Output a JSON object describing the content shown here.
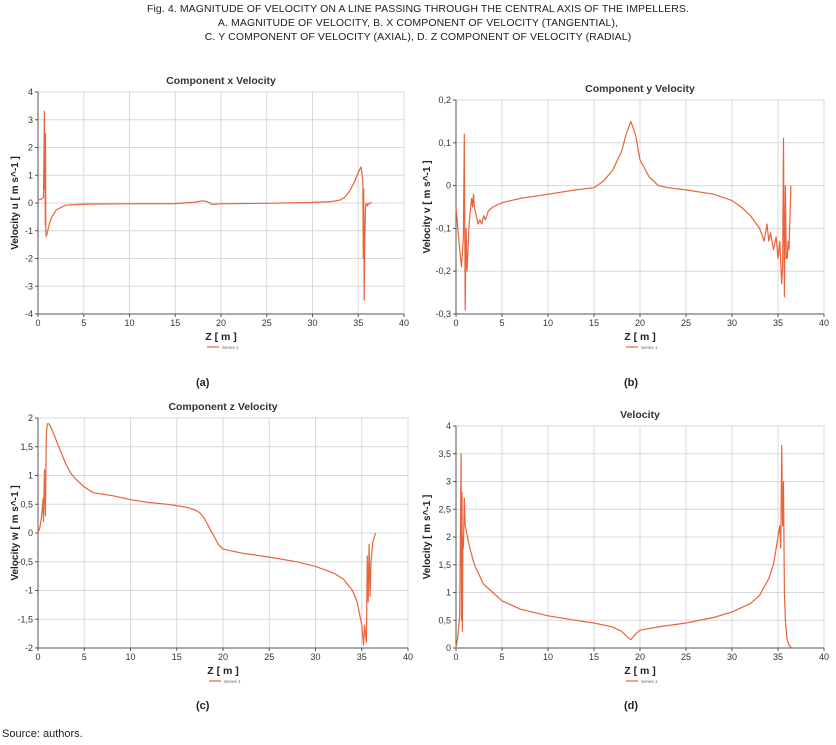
{
  "caption": {
    "line1": "Fig. 4. MAGNITUDE OF VELOCITY ON A LINE PASSING THROUGH THE CENTRAL AXIS OF THE IMPELLERS.",
    "line2": "A. MAGNITUDE OF VELOCITY, B. X COMPONENT OF VELOCITY (TANGENTIAL),",
    "line3": "C. Y COMPONENT OF VELOCITY (AXIAL), D. Z COMPONENT OF VELOCITY (RADIAL)"
  },
  "source": "Source: authors.",
  "colors": {
    "series": "#e8643c",
    "grid": "#d8d8d8",
    "axis": "#555555"
  },
  "chart_data": [
    {
      "id": "a",
      "type": "line",
      "panel_label": "(a)",
      "title": "Component x Velocity",
      "xlabel": "Z [ m ]",
      "ylabel": "Velocity u [ m s^-1 ]",
      "xlim": [
        0,
        40
      ],
      "ylim": [
        -4,
        4
      ],
      "xticks": [
        0,
        5,
        10,
        15,
        20,
        25,
        30,
        35,
        40
      ],
      "yticks": [
        -4,
        -3,
        -2,
        -1,
        0,
        1,
        2,
        3,
        4
      ],
      "ytick_labels": [
        "-4",
        "-3",
        "-2",
        "-1",
        "0",
        "1",
        "2",
        "3",
        "4"
      ],
      "legend": "Series 1",
      "series": [
        {
          "name": "Series 1",
          "x": [
            0,
            0.4,
            0.6,
            0.7,
            0.72,
            0.75,
            0.8,
            0.82,
            0.85,
            0.9,
            1.0,
            1.2,
            1.5,
            2.0,
            3.0,
            5.0,
            10,
            15,
            17,
            18,
            18.5,
            19,
            20,
            25,
            30,
            32,
            33,
            33.5,
            34,
            34.5,
            35,
            35.3,
            35.5,
            35.55,
            35.6,
            35.65,
            35.7,
            35.8,
            35.9,
            36.0,
            36.2,
            36.5
          ],
          "y": [
            0.1,
            0.15,
            0.2,
            3.3,
            0.5,
            2.4,
            -0.8,
            2.5,
            -1.0,
            -1.2,
            -1.1,
            -0.8,
            -0.5,
            -0.25,
            -0.08,
            -0.04,
            -0.03,
            -0.02,
            0.02,
            0.08,
            0.05,
            -0.05,
            -0.03,
            -0.01,
            0.02,
            0.05,
            0.1,
            0.2,
            0.4,
            0.7,
            1.1,
            1.3,
            0.8,
            -2.0,
            0.5,
            -3.5,
            -1.5,
            -0.1,
            0.0,
            -0.1,
            0.0,
            0.0
          ]
        }
      ]
    },
    {
      "id": "b",
      "type": "line",
      "panel_label": "(b)",
      "title": "Component y Velocity",
      "xlabel": "Z [ m ]",
      "ylabel": "Velocity v [ m s^-1 ]",
      "xlim": [
        0,
        40
      ],
      "ylim": [
        -0.3,
        0.2
      ],
      "xticks": [
        0,
        5,
        10,
        15,
        20,
        25,
        30,
        35,
        40
      ],
      "yticks": [
        -0.3,
        -0.2,
        -0.1,
        0,
        0.1,
        0.2
      ],
      "ytick_labels": [
        "-0,3",
        "-0,2",
        "-0,1",
        "0",
        "0,1",
        "0,2"
      ],
      "legend": "Series 1",
      "series": [
        {
          "name": "Series 1",
          "x": [
            0,
            0.2,
            0.4,
            0.6,
            0.8,
            0.9,
            1.0,
            1.1,
            1.2,
            1.3,
            1.4,
            1.5,
            1.6,
            1.7,
            1.8,
            1.9,
            2.0,
            2.2,
            2.4,
            2.6,
            2.8,
            3.0,
            3.2,
            3.5,
            4.0,
            5.0,
            7.0,
            10,
            13,
            15,
            16,
            17,
            18,
            18.5,
            19,
            19.5,
            20,
            21,
            22,
            23,
            25,
            28,
            30,
            31,
            32,
            33,
            33.5,
            33.8,
            34.0,
            34.2,
            34.5,
            34.8,
            35.0,
            35.2,
            35.4,
            35.5,
            35.6,
            35.7,
            35.8,
            35.9,
            36.0,
            36.1,
            36.2,
            36.4
          ],
          "y": [
            -0.05,
            -0.1,
            -0.15,
            -0.19,
            -0.12,
            0.12,
            -0.29,
            -0.1,
            -0.2,
            -0.15,
            -0.1,
            -0.07,
            -0.05,
            -0.03,
            -0.05,
            -0.02,
            -0.05,
            -0.07,
            -0.09,
            -0.08,
            -0.09,
            -0.07,
            -0.08,
            -0.06,
            -0.05,
            -0.04,
            -0.03,
            -0.02,
            -0.01,
            -0.005,
            0.01,
            0.035,
            0.08,
            0.12,
            0.15,
            0.12,
            0.06,
            0.02,
            0.0,
            -0.005,
            -0.01,
            -0.02,
            -0.035,
            -0.05,
            -0.07,
            -0.1,
            -0.13,
            -0.09,
            -0.13,
            -0.11,
            -0.15,
            -0.12,
            -0.17,
            -0.13,
            -0.23,
            -0.19,
            0.11,
            -0.26,
            0.0,
            -0.17,
            -0.17,
            -0.13,
            -0.15,
            0.0
          ]
        }
      ]
    },
    {
      "id": "c",
      "type": "line",
      "panel_label": "(c)",
      "title": "Component z Velocity",
      "xlabel": "Z [ m ]",
      "ylabel": "Velocity w [ m s^-1 ]",
      "xlim": [
        0,
        40
      ],
      "ylim": [
        -2,
        2
      ],
      "xticks": [
        0,
        5,
        10,
        15,
        20,
        25,
        30,
        35,
        40
      ],
      "yticks": [
        -2,
        -1.5,
        -1,
        -0.5,
        0,
        0.5,
        1,
        1.5,
        2
      ],
      "ytick_labels": [
        "-2",
        "-1,5",
        "-1",
        "-0,5",
        "0",
        "0,5",
        "1",
        "1,5",
        "2"
      ],
      "legend": "Series 1",
      "series": [
        {
          "name": "Series 1",
          "x": [
            0,
            0.2,
            0.4,
            0.55,
            0.6,
            0.7,
            0.8,
            0.9,
            1.0,
            1.2,
            1.5,
            2.0,
            2.5,
            3.0,
            3.5,
            4.0,
            5.0,
            6.0,
            8.0,
            10,
            12,
            14,
            16,
            17,
            17.5,
            18,
            18.5,
            19,
            19.5,
            20,
            22,
            25,
            28,
            30,
            32,
            33,
            34,
            34.5,
            35,
            35.2,
            35.3,
            35.5,
            35.6,
            35.7,
            35.8,
            35.9,
            36.0,
            36.2,
            36.5
          ],
          "y": [
            0.0,
            0.1,
            0.3,
            0.6,
            0.2,
            1.1,
            0.3,
            1.7,
            1.9,
            1.9,
            1.8,
            1.6,
            1.4,
            1.2,
            1.05,
            0.95,
            0.8,
            0.7,
            0.65,
            0.58,
            0.53,
            0.5,
            0.45,
            0.4,
            0.35,
            0.25,
            0.1,
            -0.05,
            -0.2,
            -0.28,
            -0.35,
            -0.42,
            -0.5,
            -0.58,
            -0.7,
            -0.8,
            -1.0,
            -1.2,
            -1.6,
            -1.95,
            -1.6,
            -1.9,
            -0.4,
            -1.2,
            -0.2,
            -1.1,
            -0.5,
            -0.15,
            0.0
          ]
        }
      ]
    },
    {
      "id": "d",
      "type": "line",
      "panel_label": "(d)",
      "title": "Velocity",
      "xlabel": "Z [ m ]",
      "ylabel": "Velocity [ m s^-1 ]",
      "xlim": [
        0,
        40
      ],
      "ylim": [
        0,
        4
      ],
      "xticks": [
        0,
        5,
        10,
        15,
        20,
        25,
        30,
        35,
        40
      ],
      "yticks": [
        0,
        0.5,
        1,
        1.5,
        2,
        2.5,
        3,
        3.5,
        4
      ],
      "ytick_labels": [
        "0",
        "0,5",
        "1",
        "1,5",
        "2",
        "2,5",
        "3",
        "3,5",
        "4"
      ],
      "legend": "Series 1",
      "series": [
        {
          "name": "Series 1",
          "x": [
            0,
            0.2,
            0.4,
            0.55,
            0.6,
            0.65,
            0.7,
            0.75,
            0.8,
            0.9,
            1.0,
            1.5,
            2.0,
            3.0,
            4.0,
            5.0,
            7.0,
            10,
            13,
            15,
            17,
            18,
            18.5,
            19,
            19.5,
            20,
            22,
            25,
            28,
            30,
            32,
            33,
            34,
            34.5,
            35,
            35.2,
            35.3,
            35.4,
            35.5,
            35.6,
            35.7,
            35.8,
            35.9,
            36.0,
            36.2,
            36.5
          ],
          "y": [
            0.0,
            0.2,
            0.6,
            3.5,
            0.5,
            2.8,
            0.3,
            2.0,
            1.8,
            2.7,
            2.2,
            1.8,
            1.5,
            1.15,
            1.0,
            0.85,
            0.7,
            0.58,
            0.5,
            0.45,
            0.38,
            0.3,
            0.22,
            0.15,
            0.25,
            0.32,
            0.38,
            0.45,
            0.55,
            0.65,
            0.8,
            0.95,
            1.25,
            1.5,
            2.0,
            2.2,
            1.8,
            3.65,
            2.2,
            3.0,
            1.0,
            0.5,
            0.3,
            0.15,
            0.05,
            0.0
          ]
        }
      ]
    }
  ]
}
